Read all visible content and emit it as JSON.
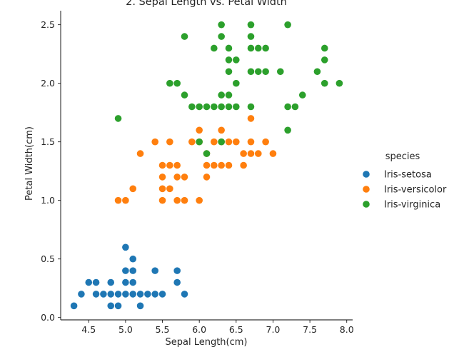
{
  "chart_data": {
    "type": "scatter",
    "title": "2. Sepal Length vs. Petal Width",
    "xlabel": "Sepal Length(cm)",
    "ylabel": "Petal Width(cm)",
    "xlim": [
      4.12,
      8.08
    ],
    "ylim": [
      -0.02,
      2.62
    ],
    "xticks": [
      "4.5",
      "5.0",
      "5.5",
      "6.0",
      "6.5",
      "7.0",
      "7.5",
      "8.0"
    ],
    "yticks": [
      "0.0",
      "0.5",
      "1.0",
      "1.5",
      "2.0",
      "2.5"
    ],
    "grid": false,
    "legend": {
      "title": "species",
      "placement": "right"
    },
    "series": [
      {
        "name": "Iris-setosa",
        "color": "#1f77b4",
        "points": [
          [
            4.3,
            0.1
          ],
          [
            4.4,
            0.2
          ],
          [
            4.5,
            0.3
          ],
          [
            4.6,
            0.2
          ],
          [
            4.6,
            0.3
          ],
          [
            4.7,
            0.2
          ],
          [
            4.8,
            0.1
          ],
          [
            4.8,
            0.2
          ],
          [
            4.8,
            0.3
          ],
          [
            4.9,
            0.1
          ],
          [
            4.9,
            0.2
          ],
          [
            5.0,
            0.2
          ],
          [
            5.0,
            0.3
          ],
          [
            5.0,
            0.4
          ],
          [
            5.0,
            0.6
          ],
          [
            5.1,
            0.2
          ],
          [
            5.1,
            0.3
          ],
          [
            5.1,
            0.4
          ],
          [
            5.1,
            0.5
          ],
          [
            5.2,
            0.1
          ],
          [
            5.2,
            0.2
          ],
          [
            5.3,
            0.2
          ],
          [
            5.4,
            0.2
          ],
          [
            5.4,
            0.4
          ],
          [
            5.5,
            0.2
          ],
          [
            5.7,
            0.3
          ],
          [
            5.7,
            0.4
          ],
          [
            5.8,
            0.2
          ]
        ]
      },
      {
        "name": "Iris-versicolor",
        "color": "#ff7f0e",
        "points": [
          [
            4.9,
            1.0
          ],
          [
            5.0,
            1.0
          ],
          [
            5.1,
            1.1
          ],
          [
            5.2,
            1.4
          ],
          [
            5.4,
            1.5
          ],
          [
            5.5,
            1.0
          ],
          [
            5.5,
            1.1
          ],
          [
            5.5,
            1.2
          ],
          [
            5.5,
            1.3
          ],
          [
            5.6,
            1.1
          ],
          [
            5.6,
            1.3
          ],
          [
            5.6,
            1.5
          ],
          [
            5.7,
            1.0
          ],
          [
            5.7,
            1.2
          ],
          [
            5.7,
            1.3
          ],
          [
            5.8,
            1.0
          ],
          [
            5.8,
            1.2
          ],
          [
            5.9,
            1.5
          ],
          [
            6.0,
            1.0
          ],
          [
            6.0,
            1.5
          ],
          [
            6.0,
            1.6
          ],
          [
            6.1,
            1.2
          ],
          [
            6.1,
            1.3
          ],
          [
            6.1,
            1.4
          ],
          [
            6.2,
            1.3
          ],
          [
            6.2,
            1.5
          ],
          [
            6.3,
            1.3
          ],
          [
            6.3,
            1.5
          ],
          [
            6.3,
            1.6
          ],
          [
            6.4,
            1.3
          ],
          [
            6.4,
            1.5
          ],
          [
            6.5,
            1.5
          ],
          [
            6.6,
            1.3
          ],
          [
            6.6,
            1.4
          ],
          [
            6.7,
            1.4
          ],
          [
            6.7,
            1.5
          ],
          [
            6.7,
            1.7
          ],
          [
            6.8,
            1.4
          ],
          [
            6.9,
            1.5
          ],
          [
            7.0,
            1.4
          ]
        ]
      },
      {
        "name": "Iris-virginica",
        "color": "#2ca02c",
        "points": [
          [
            4.9,
            1.7
          ],
          [
            5.6,
            2.0
          ],
          [
            5.7,
            2.0
          ],
          [
            5.8,
            1.9
          ],
          [
            5.8,
            2.4
          ],
          [
            5.9,
            1.8
          ],
          [
            6.0,
            1.8
          ],
          [
            6.0,
            1.5
          ],
          [
            6.1,
            1.8
          ],
          [
            6.1,
            1.4
          ],
          [
            6.2,
            1.8
          ],
          [
            6.2,
            2.3
          ],
          [
            6.3,
            1.5
          ],
          [
            6.3,
            1.8
          ],
          [
            6.3,
            1.9
          ],
          [
            6.3,
            2.4
          ],
          [
            6.3,
            2.5
          ],
          [
            6.4,
            1.8
          ],
          [
            6.4,
            1.9
          ],
          [
            6.4,
            2.1
          ],
          [
            6.4,
            2.2
          ],
          [
            6.4,
            2.3
          ],
          [
            6.5,
            1.8
          ],
          [
            6.5,
            2.0
          ],
          [
            6.5,
            2.2
          ],
          [
            6.7,
            1.8
          ],
          [
            6.7,
            2.1
          ],
          [
            6.7,
            2.3
          ],
          [
            6.7,
            2.4
          ],
          [
            6.7,
            2.5
          ],
          [
            6.8,
            2.1
          ],
          [
            6.8,
            2.3
          ],
          [
            6.9,
            2.1
          ],
          [
            6.9,
            2.3
          ],
          [
            7.1,
            2.1
          ],
          [
            7.2,
            1.6
          ],
          [
            7.2,
            1.8
          ],
          [
            7.2,
            2.5
          ],
          [
            7.3,
            1.8
          ],
          [
            7.4,
            1.9
          ],
          [
            7.6,
            2.1
          ],
          [
            7.7,
            2.0
          ],
          [
            7.7,
            2.2
          ],
          [
            7.7,
            2.3
          ],
          [
            7.9,
            2.0
          ]
        ]
      }
    ]
  }
}
